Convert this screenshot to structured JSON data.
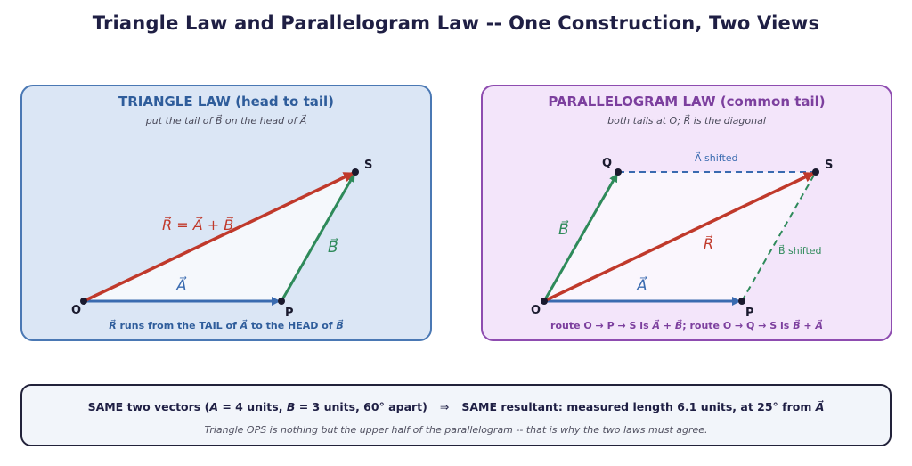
{
  "title": "Triangle Law and Parallelogram Law -- One Construction, Two Views",
  "triangle": {
    "heading": "TRIANGLE LAW  (head to tail)",
    "subtitle": {
      "a": "put the tail of ",
      "b": "B⃗",
      "c": " on the head of ",
      "d": "A⃗"
    },
    "labels": {
      "O": "O",
      "P": "P",
      "S": "S",
      "A": "A⃗",
      "B": "B⃗",
      "R": "R⃗ = A⃗ + B⃗"
    },
    "footer": {
      "a": "R⃗",
      "b": " runs from the TAIL of ",
      "c": "A⃗",
      "d": " to the HEAD of ",
      "e": "B⃗"
    }
  },
  "parallelogram": {
    "heading": "PARALLELOGRAM LAW  (common tail)",
    "subtitle": {
      "a": "both tails at O; ",
      "b": "R⃗",
      "c": " is the diagonal"
    },
    "labels": {
      "O": "O",
      "P": "P",
      "Q": "Q",
      "S": "S",
      "A": "A⃗",
      "B": "B⃗",
      "R": "R⃗",
      "A_shifted": "A⃗ shifted",
      "B_shifted": "B⃗ shifted"
    },
    "footer": {
      "a": "route O → P → S is ",
      "b": "A⃗ + B⃗",
      "c": "; route O → Q → S is ",
      "d": "B⃗ + A⃗"
    }
  },
  "summary": {
    "left": {
      "a": "SAME two vectors (",
      "b": "A",
      "c": " = 4 units, ",
      "d": "B",
      "e": " = 3 units, 60° apart)"
    },
    "arrow": "⇒",
    "right": {
      "a": "SAME resultant: measured length 6.1 units, at 25° from ",
      "b": "A⃗"
    },
    "note": "Triangle OPS is nothing but the upper half of the parallelogram -- that is why the two laws must agree."
  },
  "colors": {
    "A": "#3a6bb0",
    "B": "#2e8a5a",
    "R": "#c0392b",
    "point": "#1a1a2e"
  }
}
